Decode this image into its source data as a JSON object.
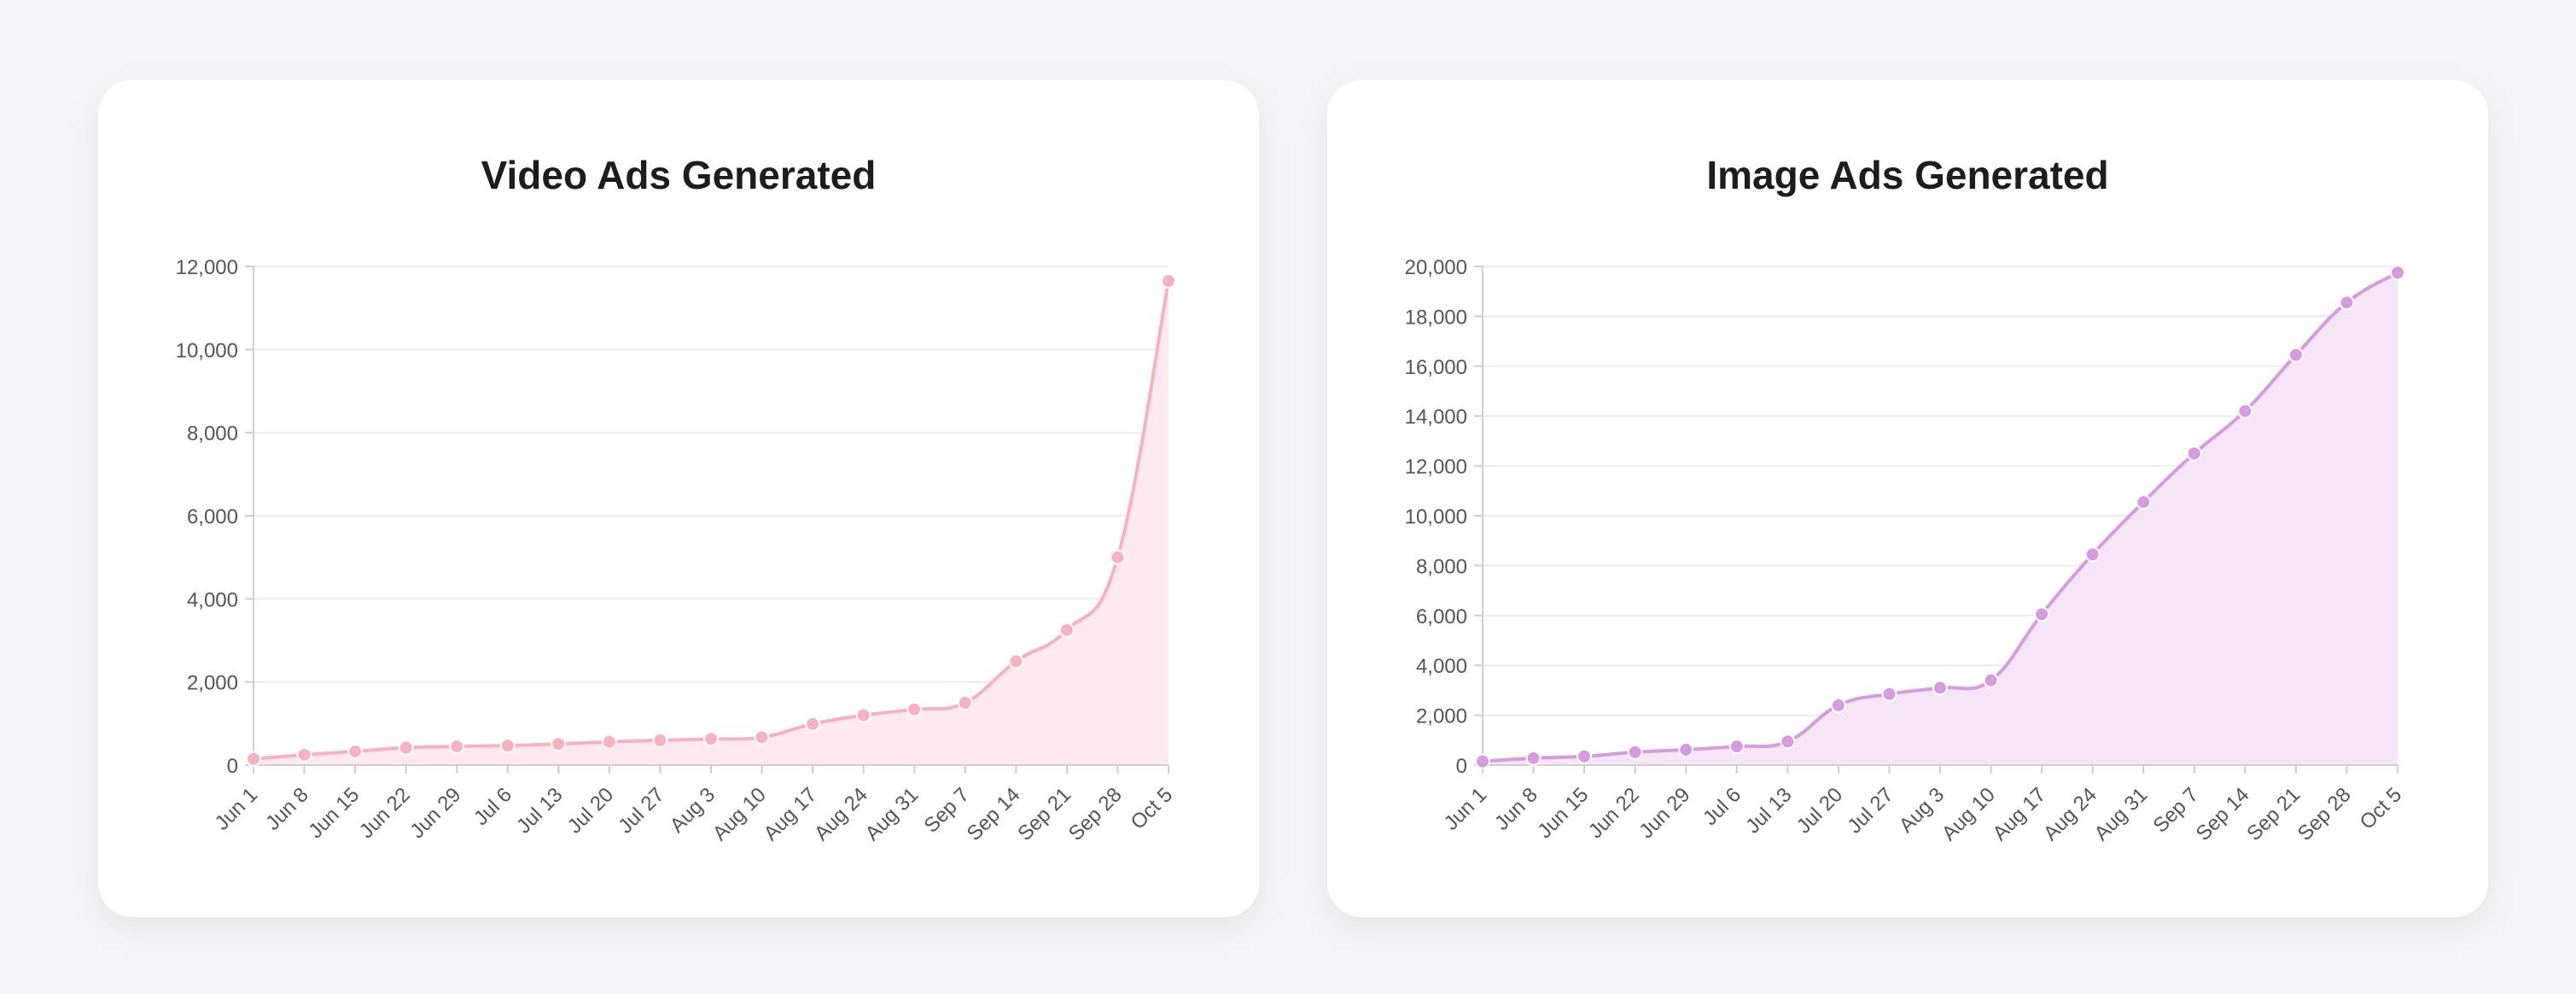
{
  "colors": {
    "background": "#f5f5f7",
    "card": "#ffffff",
    "grid": "#ebebeb",
    "axis": "#cfcfcf",
    "tick_text": "#555555"
  },
  "chart_data": [
    {
      "type": "area",
      "title": "Video Ads Generated",
      "xlabel": "",
      "ylabel": "",
      "line_color": "#f6b2c0",
      "fill_color": "#ffe9ee",
      "categories": [
        "Jun 1",
        "Jun 8",
        "Jun 15",
        "Jun 22",
        "Jun 29",
        "Jul 6",
        "Jul 13",
        "Jul 20",
        "Jul 27",
        "Aug 3",
        "Aug 10",
        "Aug 17",
        "Aug 24",
        "Aug 31",
        "Sep 7",
        "Sep 14",
        "Sep 21",
        "Sep 28",
        "Oct 5"
      ],
      "values": [
        150,
        250,
        330,
        420,
        450,
        470,
        510,
        560,
        600,
        630,
        670,
        990,
        1200,
        1340,
        1500,
        2500,
        3250,
        5000,
        11650
      ],
      "ylim": [
        0,
        12000
      ],
      "yticks": [
        0,
        2000,
        4000,
        6000,
        8000,
        10000,
        12000
      ],
      "ytick_labels": [
        "0",
        "2,000",
        "4,000",
        "6,000",
        "8,000",
        "10,000",
        "12,000"
      ],
      "grid": true,
      "legend": "none"
    },
    {
      "type": "area",
      "title": "Image Ads Generated",
      "xlabel": "",
      "ylabel": "",
      "line_color": "#d79be0",
      "fill_color": "#f5e5f7",
      "categories": [
        "Jun 1",
        "Jun 8",
        "Jun 15",
        "Jun 22",
        "Jun 29",
        "Jul 6",
        "Jul 13",
        "Jul 20",
        "Jul 27",
        "Aug 3",
        "Aug 10",
        "Aug 17",
        "Aug 24",
        "Aug 31",
        "Sep 7",
        "Sep 14",
        "Sep 21",
        "Sep 28",
        "Oct 5"
      ],
      "values": [
        150,
        280,
        350,
        520,
        620,
        750,
        950,
        2400,
        2850,
        3100,
        3400,
        6050,
        8450,
        10550,
        12500,
        14200,
        16450,
        18550,
        19750
      ],
      "ylim": [
        0,
        20000
      ],
      "yticks": [
        0,
        2000,
        4000,
        6000,
        8000,
        10000,
        12000,
        14000,
        16000,
        18000,
        20000
      ],
      "ytick_labels": [
        "0",
        "2,000",
        "4,000",
        "6,000",
        "8,000",
        "10,000",
        "12,000",
        "14,000",
        "16,000",
        "18,000",
        "20,000"
      ],
      "grid": true,
      "legend": "none"
    }
  ]
}
